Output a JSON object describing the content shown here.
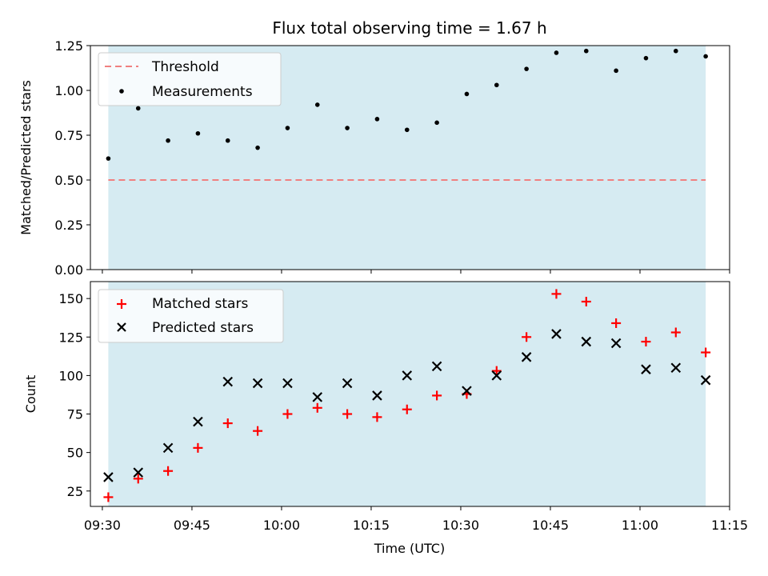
{
  "chart_data": [
    {
      "type": "scatter",
      "title": "Flux total observing time = 1.67 h",
      "xlabel": "",
      "ylabel": "Matched/Predicted stars",
      "x_axis": "time (UTC), shared with lower panel",
      "ylim": [
        0,
        1.25
      ],
      "yticks": [
        "0.00",
        "0.25",
        "0.50",
        "0.75",
        "1.00",
        "1.25"
      ],
      "grid": false,
      "legend_position": "top-left",
      "observing_window_shading": {
        "start": "09:31",
        "end": "11:11",
        "color": "#add8e6"
      },
      "threshold": {
        "name": "Threshold",
        "value": 0.5,
        "color": "#f08080",
        "style": "dashed"
      },
      "series": [
        {
          "name": "Measurements",
          "color": "#000000",
          "marker": "dot",
          "x": [
            "09:31",
            "09:36",
            "09:41",
            "09:46",
            "09:51",
            "09:56",
            "10:01",
            "10:06",
            "10:11",
            "10:16",
            "10:21",
            "10:26",
            "10:31",
            "10:36",
            "10:41",
            "10:46",
            "10:51",
            "10:56",
            "11:01",
            "11:06",
            "11:11"
          ],
          "y": [
            0.62,
            0.9,
            0.72,
            0.76,
            0.72,
            0.68,
            0.79,
            0.92,
            0.79,
            0.84,
            0.78,
            0.82,
            0.98,
            1.03,
            1.12,
            1.21,
            1.22,
            1.11,
            1.18,
            1.22,
            1.19
          ]
        }
      ]
    },
    {
      "type": "scatter",
      "title": "",
      "xlabel": "Time (UTC)",
      "ylabel": "Count",
      "xlim": [
        "09:28",
        "11:15"
      ],
      "xticks": [
        "09:30",
        "09:45",
        "10:00",
        "10:15",
        "10:30",
        "10:45",
        "11:00",
        "11:15"
      ],
      "ylim": [
        15,
        161
      ],
      "yticks": [
        "25",
        "50",
        "75",
        "100",
        "125",
        "150"
      ],
      "grid": false,
      "legend_position": "top-left",
      "observing_window_shading": {
        "start": "09:31",
        "end": "11:11",
        "color": "#add8e6"
      },
      "series": [
        {
          "name": "Matched stars",
          "color": "#ff0000",
          "marker": "plus",
          "x": [
            "09:31",
            "09:36",
            "09:41",
            "09:46",
            "09:51",
            "09:56",
            "10:01",
            "10:06",
            "10:11",
            "10:16",
            "10:21",
            "10:26",
            "10:31",
            "10:36",
            "10:41",
            "10:46",
            "10:51",
            "10:56",
            "11:01",
            "11:06",
            "11:11"
          ],
          "y": [
            21,
            33,
            38,
            53,
            69,
            64,
            75,
            79,
            75,
            73,
            78,
            87,
            88,
            103,
            125,
            153,
            148,
            134,
            122,
            128,
            115
          ]
        },
        {
          "name": "Predicted stars",
          "color": "#000000",
          "marker": "x",
          "x": [
            "09:31",
            "09:36",
            "09:41",
            "09:46",
            "09:51",
            "09:56",
            "10:01",
            "10:06",
            "10:11",
            "10:16",
            "10:21",
            "10:26",
            "10:31",
            "10:36",
            "10:41",
            "10:46",
            "10:51",
            "10:56",
            "11:01",
            "11:06",
            "11:11"
          ],
          "y": [
            34,
            37,
            53,
            70,
            96,
            95,
            95,
            86,
            95,
            87,
            100,
            106,
            90,
            100,
            112,
            127,
            122,
            121,
            104,
            105,
            97
          ]
        }
      ]
    }
  ]
}
